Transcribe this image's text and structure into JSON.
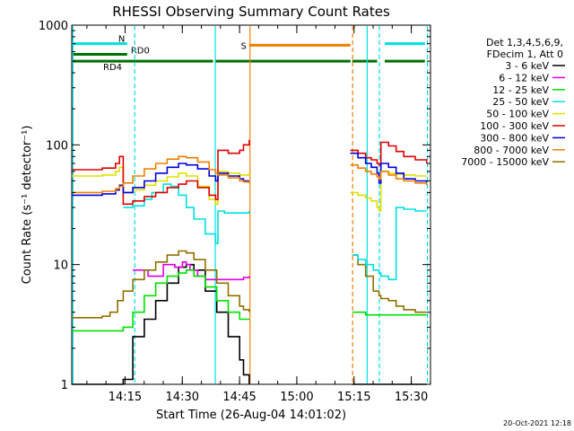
{
  "chart_data": {
    "type": "line",
    "title": "RHESSI Observing Summary Count Rates",
    "xlabel": "Start Time (26-Aug-04 14:01:02)",
    "ylabel": "Count Rate (s⁻¹ detector⁻¹)",
    "y_scale": "log",
    "ylim": [
      1,
      1000
    ],
    "xlim_minutes_from_start": [
      0,
      94
    ],
    "x_ticks": [
      {
        "label": "14:15",
        "minute": 13.97
      },
      {
        "label": "14:30",
        "minute": 28.97
      },
      {
        "label": "14:45",
        "minute": 43.97
      },
      {
        "label": "15:00",
        "minute": 58.97
      },
      {
        "label": "15:15",
        "minute": 73.97
      },
      {
        "label": "15:30",
        "minute": 88.97
      }
    ],
    "y_ticks": [
      {
        "label": "1",
        "value": 1
      },
      {
        "label": "10",
        "value": 10
      },
      {
        "label": "100",
        "value": 100
      },
      {
        "label": "1000",
        "value": 1000
      }
    ],
    "legend": {
      "header": [
        "Det 1,3,4,5,6,9,",
        "FDecim 1, Att 0"
      ],
      "placement": "right"
    },
    "series": [
      {
        "name": "3 - 6 keV",
        "color": "#000000",
        "x": [
          0,
          10,
          13.5,
          16,
          19,
          22,
          25,
          28,
          30,
          32,
          35,
          38,
          41,
          44,
          45,
          46.5,
          72,
          73.5,
          75,
          77,
          79,
          80.5,
          81,
          83,
          85,
          87,
          90,
          93
        ],
        "y": [
          1.0,
          1.0,
          1.1,
          2.5,
          3.5,
          5,
          7,
          9.5,
          10,
          9,
          6,
          4,
          2.5,
          1.6,
          1.2,
          1.0,
          null,
          1.0,
          1.0,
          1.0,
          1.0,
          1.0,
          1.0,
          1.0,
          1.0,
          1.0,
          1.0,
          1.0
        ]
      },
      {
        "name": "6 - 12 keV",
        "color": "#e000e0",
        "x": [
          16,
          20,
          24,
          27,
          29,
          30,
          31,
          33,
          35,
          38,
          41,
          44,
          45,
          46.5
        ],
        "y": [
          9,
          8,
          10,
          9.5,
          10.5,
          10,
          9,
          8,
          7.5,
          7.5,
          7.5,
          7.5,
          7.8,
          8
        ]
      },
      {
        "name": "12 - 25 keV",
        "color": "#00e000",
        "x": [
          0,
          5,
          10,
          13.5,
          16,
          19,
          22,
          25,
          28,
          30,
          32,
          35,
          38,
          41,
          44,
          45,
          46.5,
          72,
          73.5,
          75,
          77,
          79,
          80.5,
          81,
          83,
          85,
          87,
          90,
          93
        ],
        "y": [
          2.8,
          2.8,
          2.8,
          3,
          4,
          5.5,
          7,
          8,
          8.5,
          9,
          8,
          6.5,
          5,
          4,
          3.5,
          3.5,
          3.5,
          null,
          4,
          4,
          3.8,
          3.8,
          3.8,
          3.8,
          3.8,
          3.8,
          3.8,
          3.8,
          3.8
        ]
      },
      {
        "name": "25 - 50 keV",
        "color": "#00e0e0",
        "x": [
          0,
          10,
          13,
          13.5,
          16,
          19,
          21,
          24,
          26,
          28,
          30,
          32,
          35,
          37.7,
          38.3,
          40,
          44,
          45,
          46.5,
          72,
          73.5,
          75,
          77,
          79,
          80.5,
          81,
          83,
          85,
          87,
          90,
          93
        ],
        "y": [
          null,
          null,
          null,
          30,
          31,
          35,
          40,
          47,
          45,
          38,
          30,
          24,
          18,
          15,
          28,
          27,
          27,
          27,
          28,
          null,
          12,
          11,
          10,
          9,
          8.5,
          8,
          7.5,
          30,
          29,
          28,
          28
        ]
      },
      {
        "name": "50 - 100 keV",
        "color": "#e0e000",
        "x": [
          0,
          4,
          8,
          11.5,
          12.5,
          13.5,
          16,
          19,
          22,
          25,
          28,
          30,
          33,
          36,
          37.7,
          38.3,
          41,
          44,
          45,
          46.5,
          72,
          73,
          75,
          77,
          78.5,
          80,
          80.5,
          81,
          83,
          85,
          87,
          90,
          93
        ],
        "y": [
          55,
          55,
          56,
          60,
          65,
          40,
          42,
          46,
          50,
          54,
          58,
          55,
          45,
          35,
          32,
          60,
          58,
          56,
          56,
          58,
          null,
          40,
          38,
          36,
          34,
          30,
          28,
          60,
          58,
          57,
          56,
          55,
          55
        ]
      },
      {
        "name": "100 - 300 keV",
        "color": "#e00000",
        "x": [
          0,
          4,
          8,
          11.5,
          12.5,
          13.5,
          16,
          19,
          22,
          25,
          28,
          30,
          33,
          36,
          37.7,
          38.3,
          41,
          44,
          45,
          46.5,
          72,
          73,
          75,
          77,
          78.5,
          80,
          80.5,
          81,
          83,
          85,
          87,
          90,
          93
        ],
        "y": [
          62,
          62,
          64,
          70,
          80,
          32,
          34,
          37,
          40,
          44,
          47,
          50,
          44,
          38,
          35,
          90,
          85,
          90,
          100,
          110,
          null,
          90,
          85,
          78,
          75,
          70,
          68,
          105,
          98,
          88,
          80,
          75,
          70
        ]
      },
      {
        "name": "300 - 800 keV",
        "color": "#0000e0",
        "x": [
          0,
          4,
          8,
          11.5,
          12.5,
          13.5,
          16,
          19,
          22,
          25,
          28,
          30,
          33,
          36,
          37.7,
          38.3,
          41,
          44,
          45,
          46.5,
          72,
          73,
          75,
          77,
          78.5,
          80,
          80.5,
          81,
          83,
          85,
          87,
          90,
          93
        ],
        "y": [
          38,
          38,
          39,
          42,
          46,
          40,
          44,
          50,
          58,
          65,
          70,
          68,
          63,
          55,
          50,
          58,
          55,
          52,
          50,
          50,
          null,
          85,
          78,
          70,
          65,
          58,
          48,
          70,
          65,
          58,
          52,
          50,
          48
        ]
      },
      {
        "name": "800 - 7000 keV",
        "color": "#f08000",
        "x": [
          0,
          4,
          8,
          11.5,
          12.5,
          13.5,
          16,
          19,
          22,
          25,
          28,
          30,
          33,
          36,
          37.7,
          38.3,
          41,
          44,
          45,
          46.5,
          72,
          73,
          75,
          77,
          78.5,
          80,
          80.5,
          81,
          83,
          85,
          87,
          90,
          93
        ],
        "y": [
          40,
          40,
          41,
          43,
          45,
          48,
          55,
          63,
          70,
          76,
          80,
          78,
          72,
          62,
          58,
          56,
          53,
          50,
          49,
          48,
          null,
          68,
          64,
          60,
          57,
          54,
          52,
          60,
          56,
          52,
          50,
          48,
          46
        ]
      },
      {
        "name": "7000 - 15000 keV",
        "color": "#907000",
        "x": [
          0,
          4,
          8,
          10,
          12,
          13.5,
          16,
          19,
          22,
          25,
          28,
          30,
          32,
          35,
          38,
          41,
          44,
          45,
          46.5,
          72,
          73.5,
          75,
          77,
          79,
          80.5,
          81,
          83,
          85,
          87,
          90,
          93
        ],
        "y": [
          3.6,
          3.6,
          3.7,
          4,
          5,
          6,
          7.5,
          9,
          10.5,
          12,
          13,
          12.5,
          11,
          9,
          7,
          5.5,
          4.5,
          4.2,
          4,
          null,
          12,
          10,
          8,
          6,
          5.5,
          5.2,
          5,
          4.5,
          4.2,
          4,
          4
        ]
      }
    ],
    "state_bars": [
      {
        "label": "N",
        "color": "#00e0e0",
        "level": 700,
        "ranges": [
          [
            0,
            15
          ],
          [
            82,
            93
          ]
        ]
      },
      {
        "label": "S",
        "color": "#f08000",
        "level": 680,
        "ranges": [
          [
            46.5,
            73.5
          ]
        ]
      },
      {
        "label": "RD0",
        "color": "#007000",
        "level": 570,
        "ranges": [
          [
            0,
            15
          ]
        ]
      },
      {
        "label": "RD4",
        "color": "#007000",
        "level": 500,
        "ranges": [
          [
            0,
            37.5
          ],
          [
            37.5,
            73.5
          ],
          [
            73.5,
            80.5
          ],
          [
            82,
            93
          ]
        ]
      }
    ],
    "vertical_markers": [
      {
        "minute": 0.3,
        "color": "#00e0e0",
        "style": "solid"
      },
      {
        "minute": 16.5,
        "color": "#00e0e0",
        "style": "dashed"
      },
      {
        "minute": 37.6,
        "color": "#00e0e0",
        "style": "solid"
      },
      {
        "minute": 46.7,
        "color": "#f08000",
        "style": "solid"
      },
      {
        "minute": 73.6,
        "color": "#f08000",
        "style": "dashed"
      },
      {
        "minute": 77.4,
        "color": "#00e0e0",
        "style": "solid"
      },
      {
        "minute": 80.6,
        "color": "#00e0e0",
        "style": "dashed"
      },
      {
        "minute": 93.2,
        "color": "#00e0e0",
        "style": "dashed"
      }
    ]
  },
  "footer": {
    "timestamp": "20-Oct-2021 12:18"
  }
}
